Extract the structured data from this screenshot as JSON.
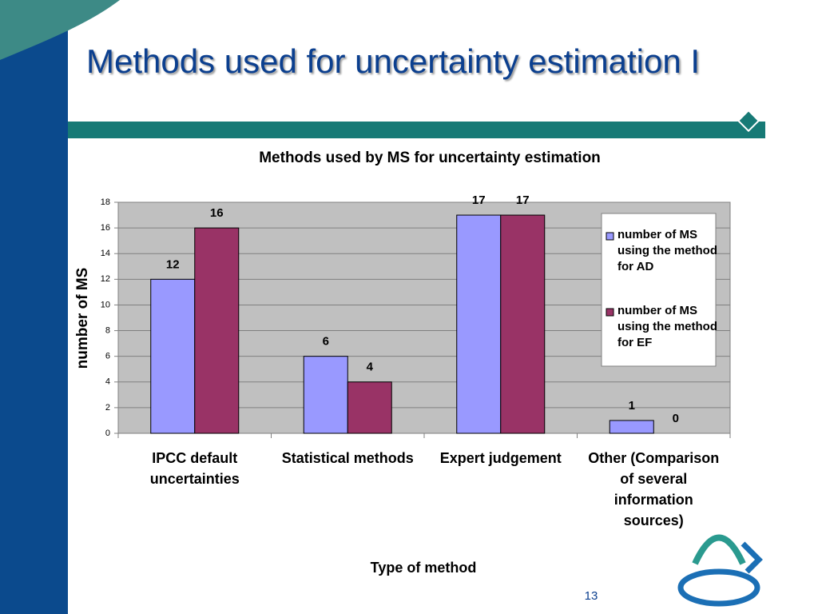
{
  "slide_title": "Methods used for uncertainty estimation I",
  "page_number": "13",
  "chart_data": {
    "type": "bar",
    "title": "Methods used by MS for uncertainty estimation",
    "xlabel": "Type of method",
    "ylabel": "number of MS",
    "categories": [
      "IPCC default uncertainties",
      "Statistical methods",
      "Expert judgement",
      "Other (Comparison of several information sources)"
    ],
    "series": [
      {
        "name": "number of MS using the method for AD",
        "color": "#9999ff",
        "values": [
          12,
          6,
          17,
          1
        ]
      },
      {
        "name": "number of MS using the method for EF",
        "color": "#993366",
        "values": [
          16,
          4,
          17,
          0
        ]
      }
    ],
    "ylim": [
      0,
      18
    ],
    "yticks": [
      0,
      2,
      4,
      6,
      8,
      10,
      12,
      14,
      16,
      18
    ],
    "grid": true,
    "legend": "right"
  }
}
